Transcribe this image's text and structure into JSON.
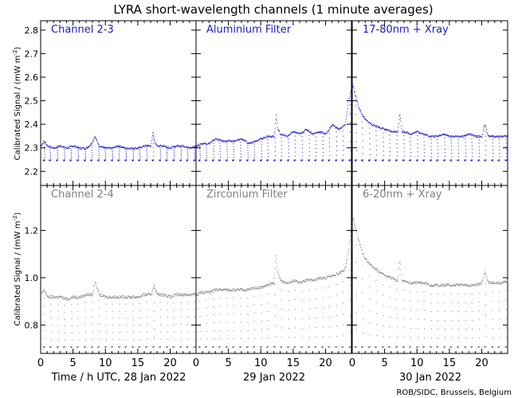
{
  "title": "LYRA short-wavelength channels (1 minute averages)",
  "credit": "ROB/SIDC, Brussels, Belgium",
  "ylabel": "Calibrated Signal / (mW m",
  "ylabel_sup": "-2",
  "ylabel_end": ")",
  "xlabel_first": "Time / h UTC, 28 Jan 2022",
  "day_labels": [
    "29 Jan 2022",
    "30 Jan 2022"
  ],
  "colors": {
    "top": "#1a1acd",
    "bottom": "#808080",
    "axis": "#000000"
  },
  "chart_data": [
    {
      "type": "scatter",
      "row": "top",
      "ylim": [
        2.14,
        2.84
      ],
      "yticks": [
        "2.2",
        "2.3",
        "2.4",
        "2.5",
        "2.6",
        "2.7",
        "2.8"
      ],
      "xlim": [
        0,
        24
      ],
      "xticks": [
        "0",
        "5",
        "10",
        "15",
        "20"
      ],
      "panels": [
        {
          "label": "Channel 2-3",
          "x": [
            0,
            0.5,
            1,
            2,
            3,
            4,
            5,
            6,
            7,
            7.5,
            8,
            8.3,
            9,
            10,
            11,
            12,
            13,
            14,
            15,
            16,
            17,
            17.3,
            17.6,
            18,
            19,
            20,
            21,
            22,
            23,
            24
          ],
          "y": [
            2.31,
            2.33,
            2.31,
            2.3,
            2.31,
            2.3,
            2.31,
            2.3,
            2.3,
            2.31,
            2.33,
            2.35,
            2.31,
            2.3,
            2.3,
            2.31,
            2.3,
            2.3,
            2.3,
            2.31,
            2.31,
            2.37,
            2.32,
            2.31,
            2.31,
            2.3,
            2.31,
            2.31,
            2.3,
            2.31
          ],
          "dips": [
            0.5,
            1.4,
            2.5,
            3.6,
            4.6,
            5.7,
            6.8,
            7.8,
            8.9,
            9.9,
            11,
            12,
            13.1,
            14.2,
            15.2,
            16.3,
            17.3,
            18.4,
            19.4,
            20.5,
            21.6,
            22.6,
            23.7
          ],
          "dip_min": 2.25
        },
        {
          "label": "Aluminium Filter",
          "x": [
            0,
            1,
            2,
            3,
            4,
            5,
            6,
            7,
            8,
            9,
            10,
            11,
            12,
            12.3,
            12.6,
            13,
            14,
            15,
            16,
            17,
            18,
            19,
            20,
            21,
            22,
            23,
            23.5,
            24
          ],
          "y": [
            2.31,
            2.32,
            2.32,
            2.34,
            2.33,
            2.33,
            2.33,
            2.34,
            2.32,
            2.33,
            2.34,
            2.35,
            2.35,
            2.44,
            2.38,
            2.36,
            2.35,
            2.37,
            2.36,
            2.38,
            2.36,
            2.37,
            2.36,
            2.4,
            2.38,
            2.4,
            2.5,
            2.56
          ],
          "dips": [
            0.5,
            1.5,
            2.6,
            3.6,
            4.7,
            5.7,
            6.8,
            7.9,
            8.9,
            10,
            11,
            12.1,
            13.1,
            14.2,
            15.2,
            16.3,
            17.4,
            18.4,
            19.5,
            20.5,
            21.6,
            22.6,
            23.7
          ],
          "dip_min": 2.25
        },
        {
          "label": "17-80nm + Xray",
          "x": [
            0,
            0.5,
            1,
            1.5,
            2,
            3,
            4,
            5,
            6,
            7,
            7.3,
            7.6,
            8,
            9,
            10,
            11,
            12,
            13,
            14,
            15,
            16,
            17,
            18,
            19,
            20,
            20.4,
            21,
            22,
            23,
            24
          ],
          "y": [
            2.57,
            2.52,
            2.47,
            2.44,
            2.42,
            2.4,
            2.39,
            2.38,
            2.37,
            2.37,
            2.45,
            2.37,
            2.37,
            2.36,
            2.37,
            2.36,
            2.35,
            2.35,
            2.36,
            2.35,
            2.35,
            2.35,
            2.36,
            2.35,
            2.35,
            2.4,
            2.35,
            2.35,
            2.35,
            2.35
          ],
          "dips": [
            0.5,
            1.5,
            2.6,
            3.6,
            4.7,
            5.7,
            6.8,
            7.9,
            8.9,
            10,
            11,
            12.1,
            13.1,
            14.2,
            15.2,
            16.3,
            17.4,
            18.4,
            19.5,
            20.5,
            21.6,
            22.6,
            23.7
          ],
          "dip_min": 2.25
        }
      ]
    },
    {
      "type": "scatter",
      "row": "bottom",
      "ylim": [
        0.68,
        1.39
      ],
      "yticks": [
        "0.8",
        "1.0",
        "1.2"
      ],
      "xlim": [
        0,
        24
      ],
      "xticks": [
        "0",
        "5",
        "10",
        "15",
        "20"
      ],
      "panels": [
        {
          "label": "Channel 2-4",
          "x": [
            0,
            0.5,
            1,
            2,
            3,
            4,
            5,
            6,
            7,
            8,
            8.3,
            9,
            10,
            11,
            12,
            13,
            14,
            15,
            16,
            17,
            17.4,
            18,
            19,
            20,
            21,
            22,
            23,
            24
          ],
          "y": [
            0.93,
            0.95,
            0.92,
            0.92,
            0.92,
            0.91,
            0.92,
            0.92,
            0.93,
            0.93,
            0.99,
            0.93,
            0.92,
            0.92,
            0.92,
            0.92,
            0.92,
            0.92,
            0.93,
            0.93,
            0.97,
            0.93,
            0.93,
            0.92,
            0.93,
            0.93,
            0.93,
            0.93
          ],
          "dips": [
            0.5,
            1.5,
            2.6,
            3.6,
            4.7,
            5.7,
            6.8,
            7.9,
            8.9,
            10,
            11,
            12.1,
            13.1,
            14.2,
            15.2,
            16.3,
            17.4,
            18.4,
            19.5,
            20.5,
            21.6,
            22.6,
            23.7
          ],
          "dip_min": 0.71
        },
        {
          "label": "Zirconium Filter",
          "x": [
            0,
            1,
            2,
            3,
            4,
            5,
            6,
            7,
            8,
            9,
            10,
            11,
            12,
            12.3,
            12.6,
            13,
            14,
            15,
            16,
            17,
            18,
            19,
            20,
            21,
            22,
            23,
            23.5,
            24
          ],
          "y": [
            0.93,
            0.94,
            0.94,
            0.95,
            0.95,
            0.95,
            0.95,
            0.95,
            0.95,
            0.96,
            0.96,
            0.97,
            0.98,
            1.09,
            1.02,
            0.99,
            0.98,
            0.99,
            0.98,
            0.99,
            0.99,
            1.0,
            1.0,
            1.01,
            1.02,
            1.04,
            1.12,
            1.23
          ],
          "dips": [
            0.5,
            1.5,
            2.6,
            3.6,
            4.7,
            5.7,
            6.8,
            7.9,
            8.9,
            10,
            11,
            12.1,
            13.1,
            14.2,
            15.2,
            16.3,
            17.4,
            18.4,
            19.5,
            20.5,
            21.6,
            22.6,
            23.7
          ],
          "dip_min": 0.71
        },
        {
          "label": "6-20nm + Xray",
          "x": [
            0,
            0.5,
            1,
            1.5,
            2,
            3,
            4,
            5,
            6,
            7,
            7.3,
            7.6,
            8,
            9,
            10,
            11,
            12,
            13,
            14,
            15,
            16,
            17,
            18,
            19,
            20,
            20.4,
            21,
            22,
            23,
            24
          ],
          "y": [
            1.26,
            1.21,
            1.15,
            1.11,
            1.08,
            1.05,
            1.03,
            1.01,
            1.0,
            0.99,
            1.08,
            0.99,
            0.99,
            0.98,
            0.98,
            0.98,
            0.97,
            0.97,
            0.97,
            0.97,
            0.97,
            0.97,
            0.97,
            0.97,
            0.98,
            1.03,
            0.98,
            0.98,
            0.98,
            0.99
          ],
          "dips": [
            0.5,
            1.5,
            2.6,
            3.6,
            4.7,
            5.7,
            6.8,
            7.9,
            8.9,
            10,
            11,
            12.1,
            13.1,
            14.2,
            15.2,
            16.3,
            17.4,
            18.4,
            19.5,
            20.5,
            21.6,
            22.6,
            23.7
          ],
          "dip_min": 0.71
        }
      ]
    }
  ]
}
